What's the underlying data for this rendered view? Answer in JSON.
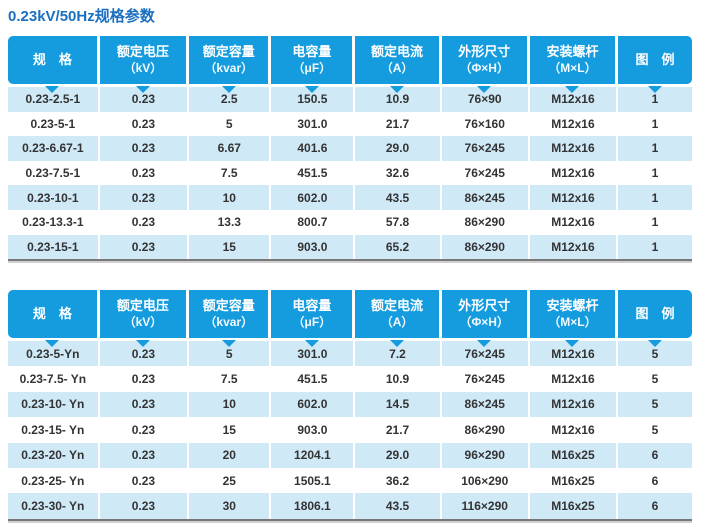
{
  "page": {
    "title": "0.23kV/50Hz规格参数"
  },
  "colors": {
    "title_text": "#1B6FC0",
    "header_background": "#149CDF",
    "header_text": "#FFFFFF",
    "row_alt_background": "#CFE9F7",
    "row_background": "#FFFFFF",
    "cell_text": "#333333",
    "table_bottom_border": "#777777"
  },
  "columns": [
    {
      "label": "规　格",
      "unit": ""
    },
    {
      "label": "额定电压",
      "unit": "（kV）"
    },
    {
      "label": "额定容量",
      "unit": "（kvar）"
    },
    {
      "label": "电容量",
      "unit": "（μF）"
    },
    {
      "label": "额定电流",
      "unit": "（A）"
    },
    {
      "label": "外形尺寸",
      "unit": "（Φ×H）"
    },
    {
      "label": "安装螺杆",
      "unit": "（M×L）"
    },
    {
      "label": "图　例",
      "unit": ""
    }
  ],
  "tables": [
    {
      "name": "spec-table-1",
      "rows": [
        [
          "0.23-2.5-1",
          "0.23",
          "2.5",
          "150.5",
          "10.9",
          "76×90",
          "M12x16",
          "1"
        ],
        [
          "0.23-5-1",
          "0.23",
          "5",
          "301.0",
          "21.7",
          "76×160",
          "M12x16",
          "1"
        ],
        [
          "0.23-6.67-1",
          "0.23",
          "6.67",
          "401.6",
          "29.0",
          "76×245",
          "M12x16",
          "1"
        ],
        [
          "0.23-7.5-1",
          "0.23",
          "7.5",
          "451.5",
          "32.6",
          "76×245",
          "M12x16",
          "1"
        ],
        [
          "0.23-10-1",
          "0.23",
          "10",
          "602.0",
          "43.5",
          "86×245",
          "M12x16",
          "1"
        ],
        [
          "0.23-13.3-1",
          "0.23",
          "13.3",
          "800.7",
          "57.8",
          "86×290",
          "M12x16",
          "1"
        ],
        [
          "0.23-15-1",
          "0.23",
          "15",
          "903.0",
          "65.2",
          "86×290",
          "M12x16",
          "1"
        ]
      ]
    },
    {
      "name": "spec-table-2",
      "rows": [
        [
          "0.23-5-Yn",
          "0.23",
          "5",
          "301.0",
          "7.2",
          "76×245",
          "M12x16",
          "5"
        ],
        [
          "0.23-7.5- Yn",
          "0.23",
          "7.5",
          "451.5",
          "10.9",
          "76×245",
          "M12x16",
          "5"
        ],
        [
          "0.23-10- Yn",
          "0.23",
          "10",
          "602.0",
          "14.5",
          "86×245",
          "M12x16",
          "5"
        ],
        [
          "0.23-15- Yn",
          "0.23",
          "15",
          "903.0",
          "21.7",
          "86×290",
          "M12x16",
          "5"
        ],
        [
          "0.23-20- Yn",
          "0.23",
          "20",
          "1204.1",
          "29.0",
          "96×290",
          "M16x25",
          "6"
        ],
        [
          "0.23-25- Yn",
          "0.23",
          "25",
          "1505.1",
          "36.2",
          "106×290",
          "M16x25",
          "6"
        ],
        [
          "0.23-30- Yn",
          "0.23",
          "30",
          "1806.1",
          "43.5",
          "116×290",
          "M16x25",
          "6"
        ]
      ]
    }
  ]
}
